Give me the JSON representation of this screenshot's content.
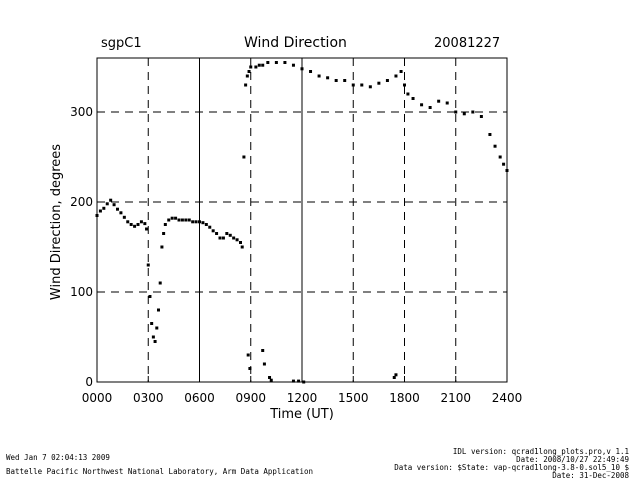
{
  "header": {
    "site": "sgpC1",
    "title": "Wind Direction",
    "date": "20081227"
  },
  "footer": {
    "left_line1": "Wed Jan  7 02:04:13 2009",
    "left_line2": "Battelle Pacific Northwest National Laboratory, Arm Data Application",
    "right_line1": "IDL version: qcrad1long_plots.pro,v 1.1",
    "right_line2": "Date: 2008/10/27 22:49:49",
    "right_line3": "Data version: $State: vap-qcrad1long-3.8-0.sol5_10 $",
    "right_line4": "Date: 31-Dec-2008"
  },
  "chart_data": {
    "type": "scatter",
    "title": "Wind Direction",
    "xlabel": "Time (UT)",
    "ylabel": "Wind Direction, degrees",
    "xlim": [
      0,
      24
    ],
    "ylim": [
      0,
      360
    ],
    "x_ticks": [
      0,
      3,
      6,
      9,
      12,
      15,
      18,
      21,
      24
    ],
    "x_tick_labels": [
      "0000",
      "0300",
      "0600",
      "0900",
      "1200",
      "1500",
      "1800",
      "2100",
      "2400"
    ],
    "y_ticks": [
      0,
      100,
      200,
      300
    ],
    "y_tick_labels": [
      "0",
      "100",
      "200",
      "300"
    ],
    "grid": "dashed at major ticks",
    "points_x": [
      0.0,
      0.2,
      0.4,
      0.6,
      0.8,
      1.0,
      1.2,
      1.4,
      1.6,
      1.8,
      2.0,
      2.2,
      2.4,
      2.6,
      2.8,
      2.9,
      3.0,
      3.1,
      3.2,
      3.3,
      3.4,
      3.5,
      3.6,
      3.7,
      3.8,
      3.9,
      4.0,
      4.2,
      4.4,
      4.6,
      4.8,
      5.0,
      5.2,
      5.4,
      5.6,
      5.8,
      6.0,
      6.2,
      6.4,
      6.6,
      6.8,
      7.0,
      7.2,
      7.4,
      7.6,
      7.8,
      8.0,
      8.2,
      8.4,
      8.5,
      8.6,
      8.7,
      8.8,
      8.9,
      9.0,
      9.3,
      9.5,
      9.7,
      10.0,
      10.5,
      11.0,
      11.5,
      12.0,
      12.5,
      13.0,
      13.5,
      14.0,
      14.5,
      15.0,
      15.5,
      16.0,
      16.5,
      17.0,
      17.5,
      17.8,
      18.0,
      18.2,
      18.5,
      19.0,
      19.5,
      20.0,
      20.5,
      21.0,
      21.5,
      22.0,
      22.5,
      23.0,
      23.3,
      23.6,
      23.8,
      24.0,
      8.85,
      8.95,
      9.7,
      9.8,
      10.1,
      10.2,
      11.5,
      11.8,
      12.1,
      17.4,
      17.5
    ],
    "points_y": [
      185,
      190,
      193,
      198,
      202,
      197,
      192,
      188,
      183,
      178,
      175,
      173,
      175,
      178,
      176,
      170,
      130,
      95,
      65,
      50,
      45,
      60,
      80,
      110,
      150,
      165,
      175,
      180,
      182,
      182,
      180,
      180,
      180,
      180,
      178,
      178,
      178,
      177,
      175,
      172,
      168,
      165,
      160,
      160,
      165,
      163,
      160,
      158,
      155,
      150,
      250,
      330,
      340,
      345,
      350,
      350,
      352,
      352,
      355,
      355,
      355,
      352,
      348,
      345,
      340,
      338,
      335,
      335,
      330,
      330,
      328,
      332,
      335,
      340,
      345,
      330,
      320,
      315,
      308,
      305,
      312,
      310,
      300,
      298,
      300,
      295,
      275,
      262,
      250,
      242,
      235,
      30,
      15,
      35,
      20,
      5,
      2,
      1,
      1,
      0,
      5,
      8
    ]
  }
}
